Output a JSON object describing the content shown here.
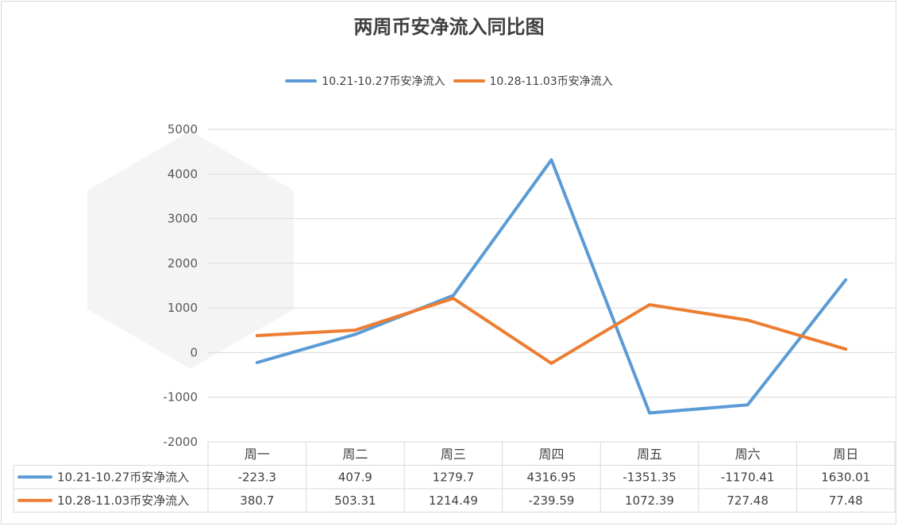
{
  "colors": {
    "series1": "#5b9bd5",
    "series2": "#ed7d31",
    "grid": "#d9d9d9"
  },
  "chart_data": {
    "type": "line",
    "title": "两周币安净流入同比图",
    "categories": [
      "周一",
      "周二",
      "周三",
      "周四",
      "周五",
      "周六",
      "周日"
    ],
    "series": [
      {
        "name": "10.21-10.27币安净流入",
        "values": [
          -223.3,
          407.9,
          1279.7,
          4316.95,
          -1351.35,
          -1170.41,
          1630.01
        ],
        "labels": [
          "-223.3",
          "407.9",
          "1279.7",
          "4316.95",
          "-1351.35",
          "-1170.41",
          "1630.01"
        ]
      },
      {
        "name": "10.28-11.03币安净流入",
        "values": [
          380.7,
          503.31,
          1214.49,
          -239.59,
          1072.39,
          727.48,
          77.48
        ],
        "labels": [
          "380.7",
          "503.31",
          "1214.49",
          "-239.59",
          "1072.39",
          "727.48",
          "77.48"
        ]
      }
    ],
    "ylim": [
      -2000,
      5000
    ],
    "yticks": [
      "5000",
      "4000",
      "3000",
      "2000",
      "1000",
      "0",
      "-1000",
      "-2000"
    ],
    "ytick_values": [
      5000,
      4000,
      3000,
      2000,
      1000,
      0,
      -1000,
      -2000
    ],
    "grid": true,
    "legend": "top",
    "data_table": true
  }
}
